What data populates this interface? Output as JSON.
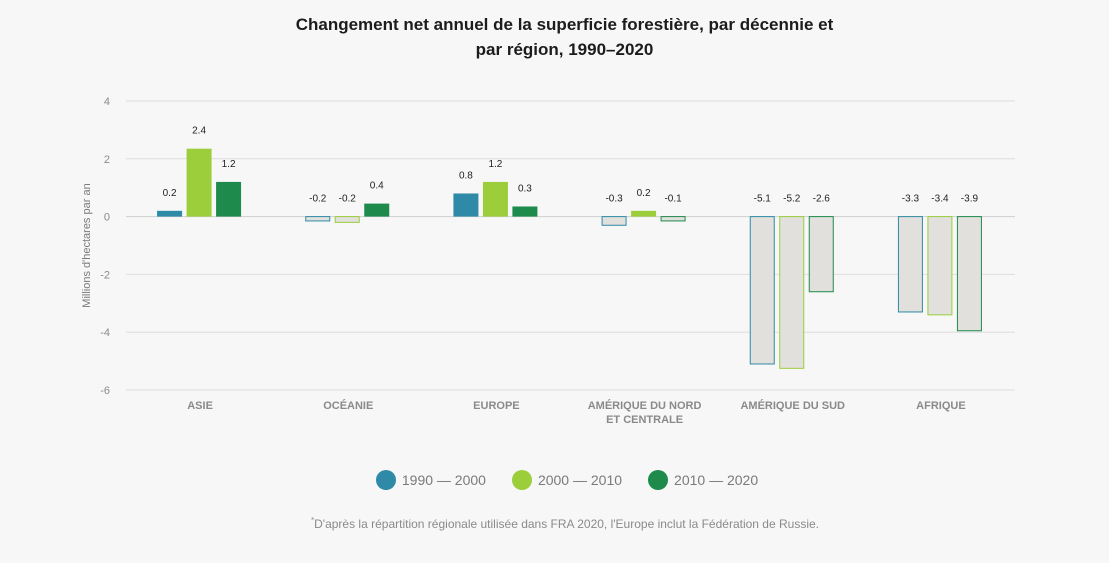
{
  "chart_data": {
    "type": "bar",
    "title_line1": "Changement net annuel de la superficie forestière, par décennie et",
    "title_line2": "par région, 1990–2020",
    "ylabel": "Millions d'hectares par an",
    "ylim": [
      -6,
      4
    ],
    "yticks": [
      "4",
      "2",
      "0",
      "-2",
      "-4",
      "-6"
    ],
    "ytick_values": [
      4,
      2,
      0,
      -2,
      -4,
      -6
    ],
    "grid": true,
    "legend_position": "bottom",
    "categories": [
      [
        "ASIE"
      ],
      [
        "OCÉANIE"
      ],
      [
        "EUROPE"
      ],
      [
        "AMÉRIQUE DU NORD",
        "ET CENTRALE"
      ],
      [
        "AMÉRIQUE DU SUD"
      ],
      [
        "AFRIQUE"
      ]
    ],
    "series": [
      {
        "name": "1990 — 2000",
        "color": "#2e8aa6",
        "values": [
          0.2,
          -0.15,
          0.8,
          -0.3,
          -5.1,
          -3.3
        ],
        "labels": [
          "0.2",
          "-0.2",
          "0.8",
          "-0.3",
          "-5.1",
          "-3.3"
        ]
      },
      {
        "name": "2000 — 2010",
        "color": "#9ccd3a",
        "values": [
          2.35,
          -0.2,
          1.2,
          0.2,
          -5.25,
          -3.4
        ],
        "labels": [
          "2.4",
          "-0.2",
          "1.2",
          "0.2",
          "-5.2",
          "-3.4"
        ]
      },
      {
        "name": "2010 — 2020",
        "color": "#1e8a4c",
        "values": [
          1.2,
          0.45,
          0.35,
          -0.15,
          -2.6,
          -3.95
        ],
        "labels": [
          "1.2",
          "0.4",
          "0.3",
          "-0.1",
          "-2.6",
          "-3.9"
        ]
      }
    ],
    "negative_fill": "#e2e0dc"
  },
  "footnote": {
    "marker": "*",
    "text": "D'après la répartition régionale utilisée dans FRA 2020, l'Europe inclut la Fédération de Russie."
  }
}
